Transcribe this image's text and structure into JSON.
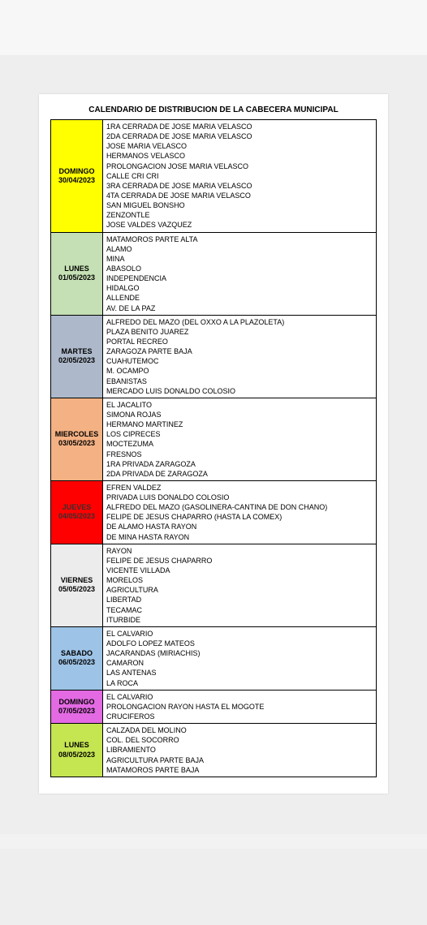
{
  "title": "CALENDARIO DE DISTRIBUCION DE LA CABECERA MUNICIPAL",
  "page_bg": "#eeeeee",
  "sheet_bg": "#ffffff",
  "border_color": "#000000",
  "rows": [
    {
      "day": "DOMINGO",
      "date": "30/04/2023",
      "bg": "#ffff00",
      "text_color": "#000000",
      "locations": [
        "1RA CERRADA DE JOSE MARIA VELASCO",
        "2DA CERRADA DE JOSE MARIA VELASCO",
        "JOSE MARIA VELASCO",
        "HERMANOS VELASCO",
        "PROLONGACION JOSE MARIA VELASCO",
        "CALLE CRI CRI",
        "3RA CERRADA DE JOSE MARIA VELASCO",
        "4TA CERRADA DE JOSE MARIA VELASCO",
        "SAN MIGUEL BONSHO",
        "ZENZONTLE",
        "JOSE VALDES VAZQUEZ"
      ]
    },
    {
      "day": "LUNES",
      "date": "01/05/2023",
      "bg": "#c5e0b4",
      "text_color": "#000000",
      "locations": [
        "MATAMOROS PARTE ALTA",
        "ALAMO",
        "MINA",
        "ABASOLO",
        "INDEPENDENCIA",
        "HIDALGO",
        "ALLENDE",
        "AV. DE LA PAZ"
      ]
    },
    {
      "day": "MARTES",
      "date": "02/05/2023",
      "bg": "#adb9ca",
      "text_color": "#000000",
      "locations": [
        "ALFREDO DEL MAZO (DEL OXXO A LA PLAZOLETA)",
        "PLAZA BENITO JUAREZ",
        "PORTAL RECREO",
        "ZARAGOZA PARTE BAJA",
        "CUAHUTEMOC",
        "M. OCAMPO",
        "EBANISTAS",
        "MERCADO LUIS DONALDO COLOSIO"
      ]
    },
    {
      "day": "MIERCOLES",
      "date": "03/05/2023",
      "bg": "#f4b183",
      "text_color": "#000000",
      "locations": [
        "EL JACALITO",
        "SIMONA ROJAS",
        "HERMANO MARTINEZ",
        "LOS CIPRECES",
        "MOCTEZUMA",
        "FRESNOS",
        "1RA PRIVADA ZARAGOZA",
        "2DA PRIVADA DE ZARAGOZA"
      ]
    },
    {
      "day": "JUEVES",
      "date": "04/05/2023",
      "bg": "#ff0000",
      "text_color": "#3b2f2f",
      "locations": [
        "EFREN VALDEZ",
        "PRIVADA LUIS DONALDO COLOSIO",
        "ALFREDO DEL MAZO (GASOLINERA-CANTINA DE DON CHANO)",
        "FELIPE DE JESUS CHAPARRO (HASTA LA COMEX)",
        "DE ALAMO HASTA RAYON",
        "DE MINA HASTA RAYON"
      ]
    },
    {
      "day": "VIERNES",
      "date": "05/05/2023",
      "bg": "#ececec",
      "text_color": "#000000",
      "locations": [
        "RAYON",
        "FELIPE DE JESUS CHAPARRO",
        "VICENTE VILLADA",
        "MORELOS",
        "AGRICULTURA",
        "LIBERTAD",
        "TECAMAC",
        "ITURBIDE"
      ]
    },
    {
      "day": "SABADO",
      "date": "06/05/2023",
      "bg": "#9dc3e6",
      "text_color": "#000000",
      "locations": [
        "EL CALVARIO",
        "ADOLFO LOPEZ MATEOS",
        "JACARANDAS (MIRIACHIS)",
        "CAMARON",
        "LAS ANTENAS",
        "LA ROCA"
      ]
    },
    {
      "day": "DOMINGO",
      "date": "07/05/2023",
      "bg": "#e36ae3",
      "text_color": "#000000",
      "locations": [
        "EL CALVARIO",
        "PROLONGACION RAYON HASTA EL MOGOTE",
        "CRUCIFEROS"
      ]
    },
    {
      "day": "LUNES",
      "date": "08/05/2023",
      "bg": "#c5e551",
      "text_color": "#000000",
      "locations": [
        "CALZADA DEL MOLINO",
        "COL. DEL SOCORRO",
        "LIBRAMIENTO",
        "AGRICULTURA PARTE BAJA",
        "MATAMOROS PARTE BAJA"
      ]
    }
  ]
}
